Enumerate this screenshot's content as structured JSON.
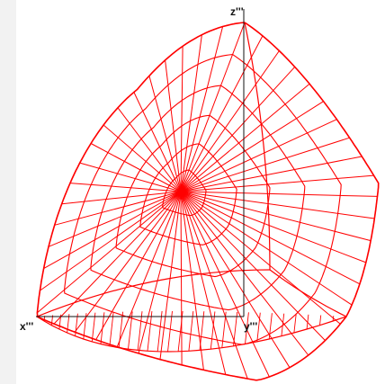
{
  "axes": {
    "x_label": "x'''",
    "y_label": "y'''",
    "z_label": "z'''"
  },
  "colors": {
    "mesh": "#ff0000",
    "axis": "#111111",
    "background": "#ffffff",
    "margin": "#f2f2f2"
  },
  "mesh": {
    "shape": "curved-triangular-solid",
    "rings": 6,
    "spokes": 48
  }
}
